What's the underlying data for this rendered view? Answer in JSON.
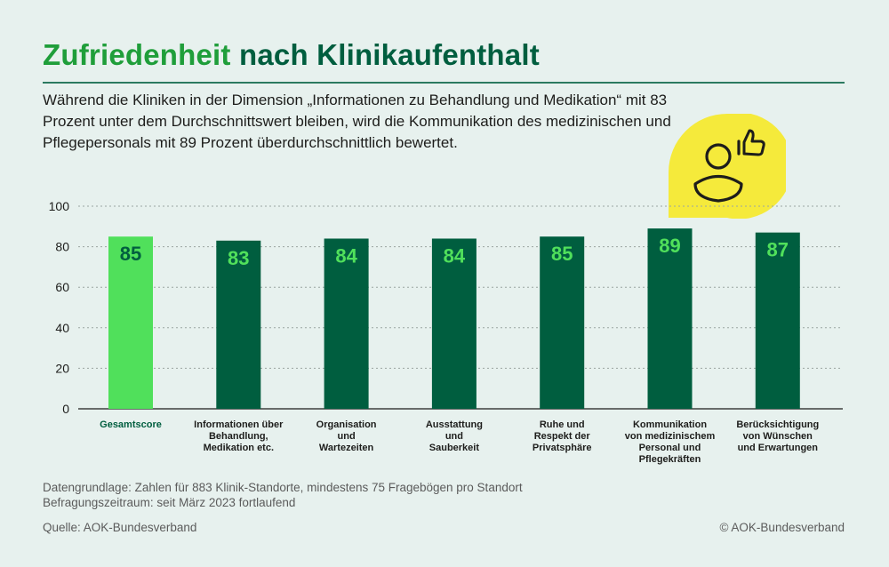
{
  "title": {
    "accent": "Zufriedenheit",
    "rest": "nach Klinikaufenthalt"
  },
  "subtitle": "Während die Kliniken in der Dimension „Informationen zu Behandlung und Medikation“ mit 83 Prozent unter dem Durchschnittswert bleiben, wird die Kommunikation des medizinischen und Pflegepersonals mit 89 Prozent überdurchschnittlich bewertet.",
  "badge": {
    "icon": "person-thumbs-up-icon",
    "color": "#f5ea3b"
  },
  "colors": {
    "highlight": "#50e05b",
    "bar": "#005e3f",
    "highlight_label": "#005e3f",
    "grid": "#9aa5a1"
  },
  "chart_data": {
    "type": "bar",
    "categories": [
      [
        "Gesamtscore"
      ],
      [
        "Informationen über",
        "Behandlung,",
        "Medikation etc."
      ],
      [
        "Organisation",
        "und",
        "Wartezeiten"
      ],
      [
        "Ausstattung",
        "und",
        "Sauberkeit"
      ],
      [
        "Ruhe und",
        "Respekt der",
        "Privatsphäre"
      ],
      [
        "Kommunikation",
        "von medizinischem",
        "Personal und",
        "Pflegekräften"
      ],
      [
        "Berücksichtigung",
        "von Wünschen",
        "und Erwartungen"
      ]
    ],
    "values": [
      85,
      83,
      84,
      84,
      85,
      89,
      87
    ],
    "highlight_index": 0,
    "ylim": [
      0,
      100
    ],
    "yticks": [
      0,
      20,
      40,
      60,
      80,
      100
    ],
    "grid": true,
    "title": "Zufriedenheit nach Klinikaufenthalt",
    "xlabel": "",
    "ylabel": ""
  },
  "footer": {
    "notes": [
      "Datengrundlage: Zahlen für 883 Klinik-Standorte, mindestens 75 Fragebögen pro Standort",
      "Befragungszeitraum: seit März 2023 fortlaufend"
    ],
    "source": "Quelle: AOK-Bundesverband",
    "copyright": "© AOK-Bundesverband"
  }
}
